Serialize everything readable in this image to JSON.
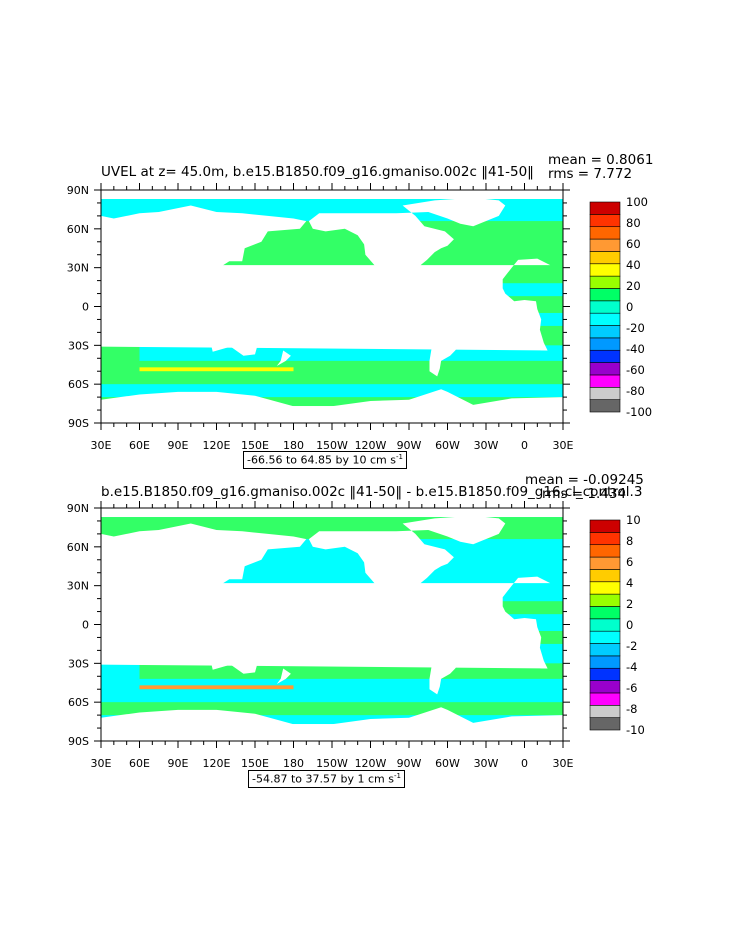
{
  "panels": [
    {
      "title": "UVEL at z=  45.0m, b.e15.B1850.f09_g16.gmaniso.002c ‖41-50‖",
      "mean_text": "mean = 0.8061",
      "rms_text": "rms = 7.772",
      "range_prefix": "-66.56 to 64.85 by 10 cm s",
      "range_sup": "-1",
      "colorbar_labels": [
        "100",
        "80",
        "60",
        "40",
        "20",
        "0",
        "-20",
        "-40",
        "-60",
        "-80",
        "-100"
      ]
    },
    {
      "title": "b.e15.B1850.f09_g16.gmaniso.002c ‖41-50‖ - b.e15.B1850.f09_g16.cl_control.3",
      "mean_text": "mean = -0.09245",
      "rms_text": "rms = 1.434",
      "range_prefix": "-54.87 to 37.57 by 1 cm s",
      "range_sup": "-1",
      "colorbar_labels": [
        "10",
        "8",
        "6",
        "4",
        "2",
        "0",
        "-2",
        "-4",
        "-6",
        "-8",
        "-10"
      ]
    }
  ],
  "lon_labels": [
    "30E",
    "60E",
    "90E",
    "120E",
    "150E",
    "180",
    "150W",
    "120W",
    "90W",
    "60W",
    "30W",
    "0",
    "30E"
  ],
  "lat_labels": [
    "90N",
    "60N",
    "30N",
    "0",
    "30S",
    "60S",
    "90S"
  ],
  "colorbar_colors": [
    "#666666",
    "#cccccc",
    "#ff00ff",
    "#9900cc",
    "#0033ff",
    "#0099ff",
    "#00ccff",
    "#00ffff",
    "#00ffcc",
    "#00ff66",
    "#99ff00",
    "#ffff00",
    "#ffcc00",
    "#ff9933",
    "#ff6600",
    "#ff3300",
    "#cc0000"
  ]
}
